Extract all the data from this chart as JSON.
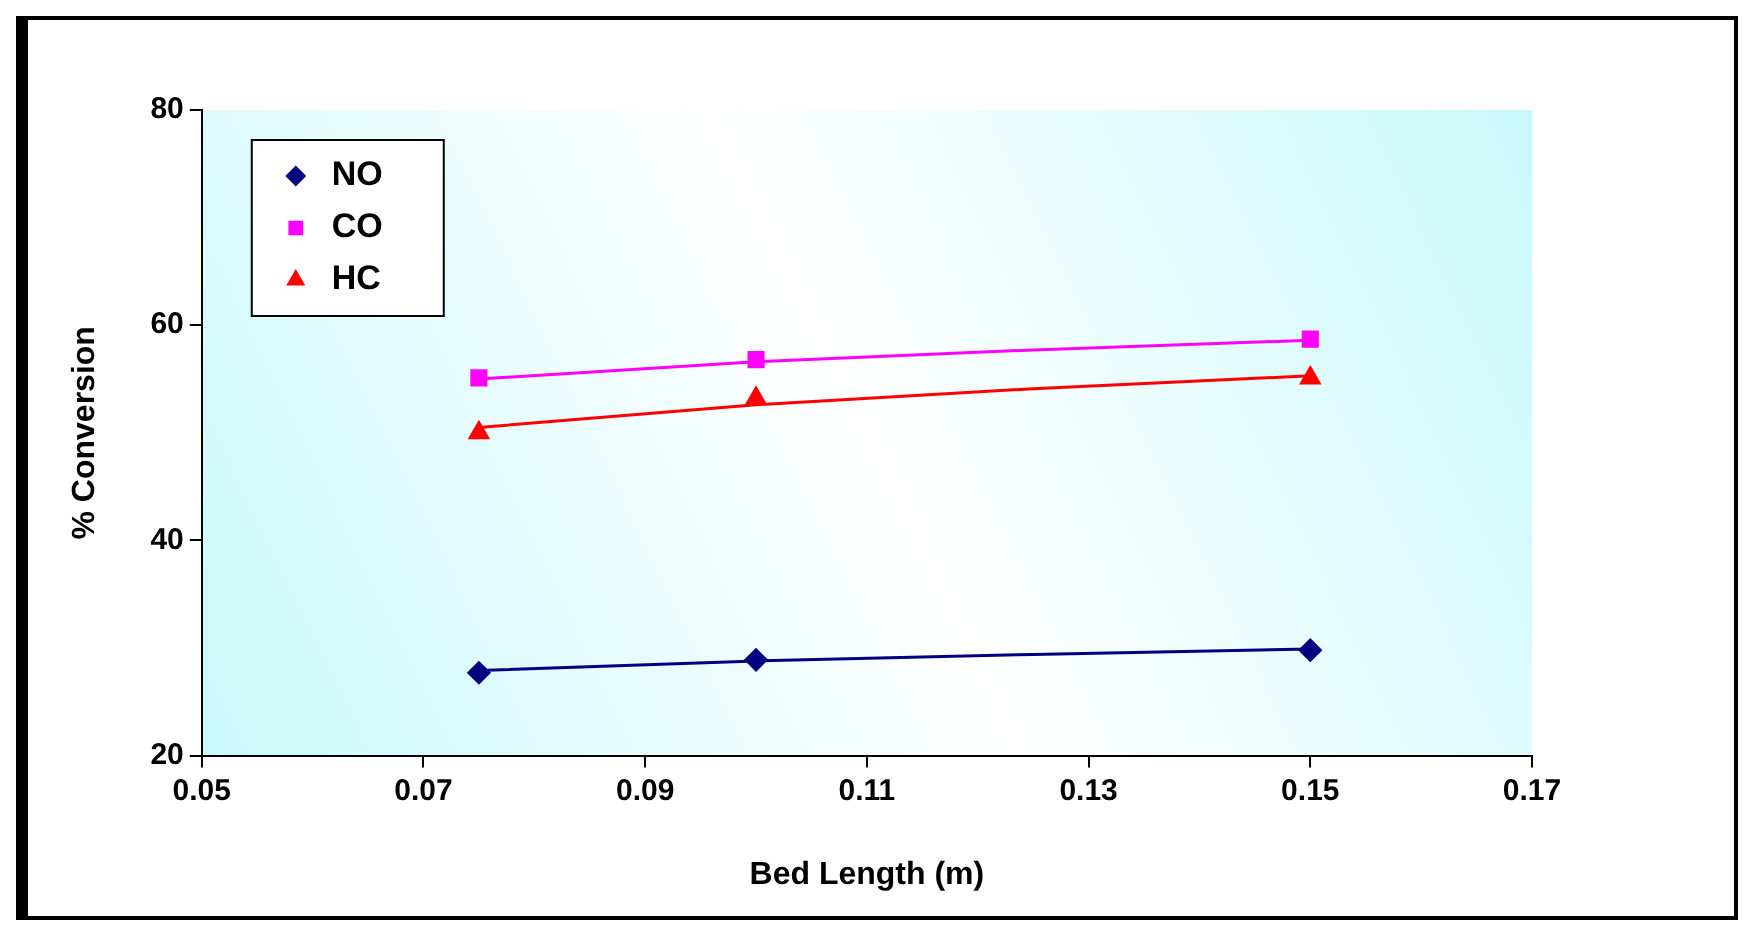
{
  "chart_data": {
    "type": "scatter",
    "xlabel": "Bed Length (m)",
    "ylabel": "% Conversion",
    "xlim": [
      0.05,
      0.17
    ],
    "xticks": [
      0.05,
      0.07,
      0.09,
      0.11,
      0.13,
      0.15,
      0.17
    ],
    "ylim": [
      20,
      80
    ],
    "yticks": [
      20,
      40,
      60,
      80
    ],
    "grid": false,
    "legend": "top left",
    "series": [
      {
        "name": "NO",
        "color": "#000080",
        "marker": "diamond",
        "x": [
          0.075,
          0.1,
          0.15
        ],
        "values": [
          27.7,
          28.9,
          29.8
        ]
      },
      {
        "name": "CO",
        "color": "#ff00ff",
        "marker": "square",
        "x": [
          0.075,
          0.1,
          0.15
        ],
        "values": [
          55.1,
          56.8,
          58.7
        ]
      },
      {
        "name": "HC",
        "color": "#ff0000",
        "marker": "triangle",
        "x": [
          0.075,
          0.1,
          0.15
        ],
        "values": [
          50.0,
          53.2,
          55.1
        ]
      },
      {
        "type": "line",
        "color": "#000080",
        "marker": "none",
        "x": [
          0.075,
          0.1,
          0.125,
          0.15
        ],
        "values": [
          27.9,
          28.8,
          29.4,
          29.9
        ]
      },
      {
        "type": "line",
        "color": "#ff00ff",
        "marker": "none",
        "x": [
          0.075,
          0.1,
          0.125,
          0.15
        ],
        "values": [
          55.0,
          56.6,
          57.7,
          58.6
        ]
      },
      {
        "type": "line",
        "color": "#ff0000",
        "marker": "none",
        "x": [
          0.075,
          0.1,
          0.125,
          0.15
        ],
        "values": [
          50.5,
          52.6,
          54.1,
          55.3
        ]
      }
    ]
  }
}
